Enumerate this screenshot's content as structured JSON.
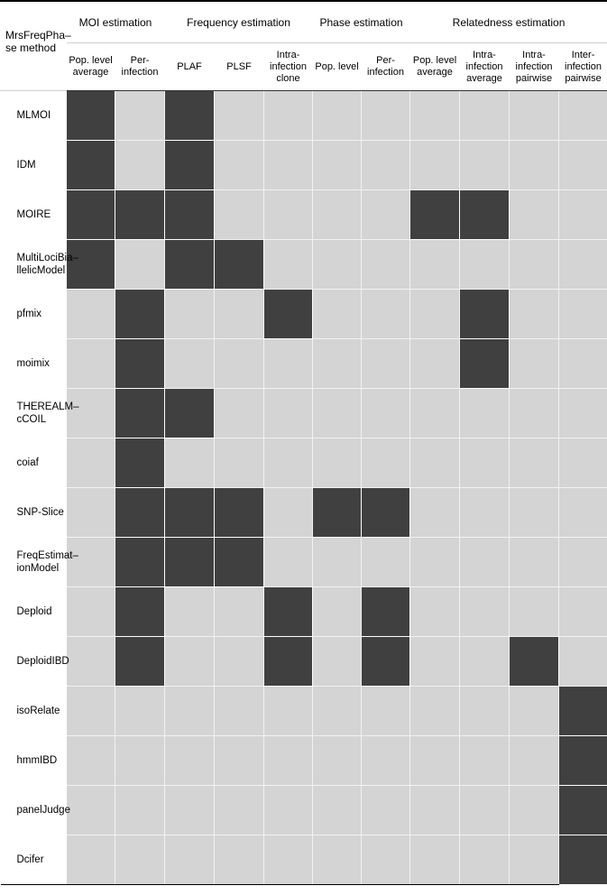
{
  "header": {
    "method_label": "MrsFreqPha–se method",
    "groups": [
      {
        "label": "MOI estimation",
        "span": 2
      },
      {
        "label": "Frequency estimation",
        "span": 3
      },
      {
        "label": "Phase estimation",
        "span": 2
      },
      {
        "label": "Relatedness estimation",
        "span": 4
      }
    ],
    "subheaders": [
      "Pop. level average",
      "Per- infection",
      "PLAF",
      "PLSF",
      "Intra- infection clone",
      "Pop. level",
      "Per- infection",
      "Pop. level average",
      "Intra- infection average",
      "Intra- infection pairwise",
      "Inter- infection pairwise"
    ]
  },
  "colors": {
    "filled": "#404040",
    "empty": "#d4d4d4"
  },
  "rows": [
    {
      "name": "MLMOI",
      "cells": [
        1,
        0,
        1,
        0,
        0,
        0,
        0,
        0,
        0,
        0,
        0
      ]
    },
    {
      "name": "IDM",
      "cells": [
        1,
        0,
        1,
        0,
        0,
        0,
        0,
        0,
        0,
        0,
        0
      ]
    },
    {
      "name": "MOIRE",
      "cells": [
        1,
        1,
        1,
        0,
        0,
        0,
        0,
        1,
        1,
        0,
        0
      ]
    },
    {
      "name": "MultiLociBia–llelicModel",
      "cells": [
        1,
        0,
        1,
        1,
        0,
        0,
        0,
        0,
        0,
        0,
        0
      ]
    },
    {
      "name": "pfmix",
      "cells": [
        0,
        1,
        0,
        0,
        1,
        0,
        0,
        0,
        1,
        0,
        0
      ]
    },
    {
      "name": "moimix",
      "cells": [
        0,
        1,
        0,
        0,
        0,
        0,
        0,
        0,
        1,
        0,
        0
      ]
    },
    {
      "name": "THEREALM–cCOIL",
      "cells": [
        0,
        1,
        1,
        0,
        0,
        0,
        0,
        0,
        0,
        0,
        0
      ]
    },
    {
      "name": "coiaf",
      "cells": [
        0,
        1,
        0,
        0,
        0,
        0,
        0,
        0,
        0,
        0,
        0
      ]
    },
    {
      "name": "SNP-Slice",
      "cells": [
        0,
        1,
        1,
        1,
        0,
        1,
        1,
        0,
        0,
        0,
        0
      ]
    },
    {
      "name": "FreqEstimat–ionModel",
      "cells": [
        0,
        1,
        1,
        1,
        0,
        0,
        0,
        0,
        0,
        0,
        0
      ]
    },
    {
      "name": "Deploid",
      "cells": [
        0,
        1,
        0,
        0,
        1,
        0,
        1,
        0,
        0,
        0,
        0
      ]
    },
    {
      "name": "DeploidIBD",
      "cells": [
        0,
        1,
        0,
        0,
        1,
        0,
        1,
        0,
        0,
        1,
        0
      ]
    },
    {
      "name": "isoRelate",
      "cells": [
        0,
        0,
        0,
        0,
        0,
        0,
        0,
        0,
        0,
        0,
        1
      ]
    },
    {
      "name": "hmmIBD",
      "cells": [
        0,
        0,
        0,
        0,
        0,
        0,
        0,
        0,
        0,
        0,
        1
      ]
    },
    {
      "name": "panelJudge",
      "cells": [
        0,
        0,
        0,
        0,
        0,
        0,
        0,
        0,
        0,
        0,
        1
      ]
    },
    {
      "name": "Dcifer",
      "cells": [
        0,
        0,
        0,
        0,
        0,
        0,
        0,
        0,
        0,
        0,
        1
      ]
    }
  ]
}
